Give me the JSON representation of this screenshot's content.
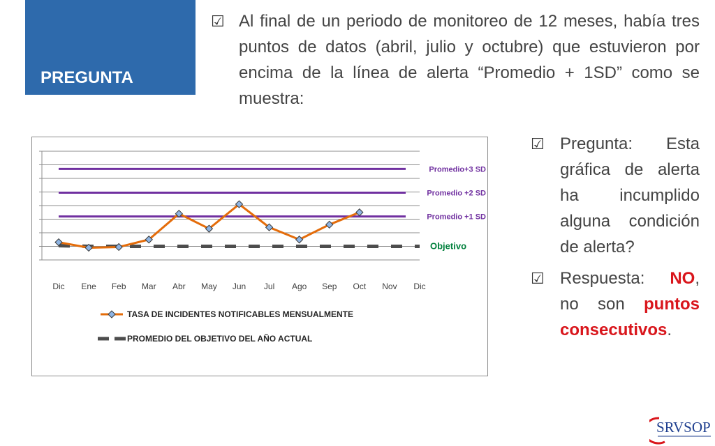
{
  "header": {
    "tag": "PREGUNTA"
  },
  "intro": {
    "checkbox": "☑",
    "text": "Al final de un periodo de monitoreo de 12 meses, había tres puntos de datos (abril, julio y octubre) que estuvieron por encima de la línea de alerta “Promedio + 1SD” como se muestra:"
  },
  "question": {
    "checkbox": "☑",
    "text": "Pregunta: Esta gráfica de alerta ha incumplido alguna condición de alerta?"
  },
  "answer": {
    "checkbox": "☑",
    "prefix": "Respuesta: ",
    "no": "NO",
    "comma": ",",
    "middle": " no son ",
    "emph": "puntos consecutivos",
    "period": "."
  },
  "logo": {
    "text": "SRVSOP",
    "icon": "srvsop-logo"
  },
  "colors": {
    "tag_bg": "#2e6aac",
    "alert_line": "#7030a0",
    "target": "#4d4d4d",
    "rate_line": "#e46c0a",
    "marker_fill": "#8eb4e3",
    "objetivo_text": "#00803c",
    "answer_red": "#d9161c"
  },
  "chart_data": {
    "type": "line",
    "categories": [
      "Dic",
      "Ene",
      "Feb",
      "Mar",
      "Abr",
      "May",
      "Jun",
      "Jul",
      "Ago",
      "Sep",
      "Oct",
      "Nov",
      "Dic"
    ],
    "ylim": [
      0,
      8
    ],
    "grid": true,
    "y_ticks": 9,
    "series": [
      {
        "name": "TASA DE INCIDENTES NOTIFICABLES MENSUALMENTE",
        "values": [
          1.3,
          0.9,
          0.95,
          1.5,
          3.4,
          2.3,
          4.1,
          2.4,
          1.5,
          2.6,
          3.5,
          null,
          null
        ]
      },
      {
        "name": "PROMEDIO DEL OBJETIVO DEL AÑO ACTUAL",
        "values": [
          1.05,
          1.0,
          1.0,
          1.0,
          1.0,
          1.0,
          1.0,
          1.0,
          1.0,
          1.0,
          1.0,
          1.0,
          1.0
        ]
      }
    ],
    "reference_lines": [
      {
        "label": "Promedio+3 SD",
        "value": 6.7
      },
      {
        "label": "Promedio +2 SD",
        "value": 4.95
      },
      {
        "label": "Promedio +1 SD",
        "value": 3.2
      }
    ],
    "target_label": "Objetivo",
    "legend": [
      {
        "label": "TASA DE INCIDENTES NOTIFICABLES MENSUALMENTE"
      },
      {
        "label": "PROMEDIO DEL OBJETIVO DEL AÑO ACTUAL"
      }
    ]
  }
}
